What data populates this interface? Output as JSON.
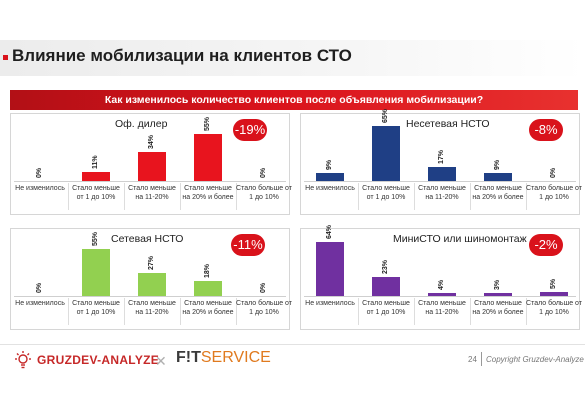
{
  "title": "Влияние мобилизации на клиентов СТО",
  "question": "Как изменилось количество клиентов после объявления мобилизации?",
  "chart_data": [
    {
      "type": "bar",
      "title": "Оф. дилер",
      "badge": "-19%",
      "color": "#e8141e",
      "categories": [
        "Не изменилось",
        "Стало меньше от 1 до 10%",
        "Стало меньше на 11-20%",
        "Стало меньше на 20% и более",
        "Стало больше от 1 до 10%"
      ],
      "values": [
        0,
        11,
        34,
        55,
        0
      ],
      "value_labels": [
        "0%",
        "11%",
        "34%",
        "55%",
        "0%"
      ]
    },
    {
      "type": "bar",
      "title": "Несетевая НСТО",
      "badge": "-8%",
      "color": "#1f3f85",
      "categories": [
        "Не изменилось",
        "Стало меньше от 1 до 10%",
        "Стало меньше на 11-20%",
        "Стало меньше на 20% и более",
        "Стало больше от 1 до 10%"
      ],
      "values": [
        9,
        65,
        17,
        9,
        0
      ],
      "value_labels": [
        "9%",
        "65%",
        "17%",
        "9%",
        "0%"
      ]
    },
    {
      "type": "bar",
      "title": "Сетевая НСТО",
      "badge": "-11%",
      "color": "#92d050",
      "categories": [
        "Не изменилось",
        "Стало меньше от 1 до 10%",
        "Стало меньше на 11-20%",
        "Стало меньше на 20% и более",
        "Стало больше от 1 до 10%"
      ],
      "values": [
        0,
        55,
        27,
        18,
        0
      ],
      "value_labels": [
        "0%",
        "55%",
        "27%",
        "18%",
        "0%"
      ]
    },
    {
      "type": "bar",
      "title": "МиниСТО или шиномонтаж",
      "badge": "-2%",
      "color": "#7030a0",
      "categories": [
        "Не изменилось",
        "Стало меньше от 1 до 10%",
        "Стало меньше на 11-20%",
        "Стало меньше на 20% и более",
        "Стало больше от 1 до 10%"
      ],
      "values": [
        64,
        23,
        4,
        3,
        5
      ],
      "value_labels": [
        "64%",
        "23%",
        "4%",
        "3%",
        "5%"
      ]
    }
  ],
  "footer": {
    "logo_left": "GRUZDEV-ANALYZE",
    "logo_right_fit": "F!T",
    "logo_right_service": "SERVICE",
    "page_number": "24",
    "copyright": "Copyright Gruzdev-Analyze"
  },
  "colors": {
    "accent": "#d9121b",
    "footer_orange": "#e07a1f"
  }
}
